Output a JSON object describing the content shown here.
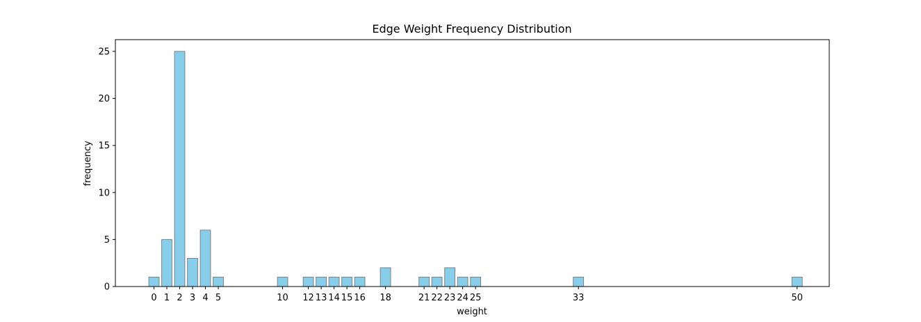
{
  "chart_data": {
    "type": "bar",
    "title": "Edge Weight Frequency Distribution",
    "xlabel": "weight",
    "ylabel": "frequency",
    "x": [
      0,
      1,
      2,
      3,
      4,
      5,
      10,
      12,
      13,
      14,
      15,
      16,
      18,
      21,
      22,
      23,
      24,
      25,
      33,
      50
    ],
    "values": [
      1,
      5,
      25,
      3,
      6,
      1,
      1,
      1,
      1,
      1,
      1,
      1,
      2,
      1,
      1,
      2,
      1,
      1,
      1,
      1
    ],
    "xticks": [
      0,
      1,
      2,
      3,
      4,
      5,
      10,
      12,
      13,
      14,
      15,
      16,
      18,
      21,
      22,
      23,
      24,
      25,
      33,
      50
    ],
    "yticks": [
      0,
      5,
      10,
      15,
      20,
      25
    ],
    "xlim": [
      -3,
      52.5
    ],
    "ylim": [
      0,
      26.25
    ],
    "grid": false,
    "legend": "none",
    "bar_color": "#87ceeb",
    "bar_edge_color": "#808080"
  }
}
